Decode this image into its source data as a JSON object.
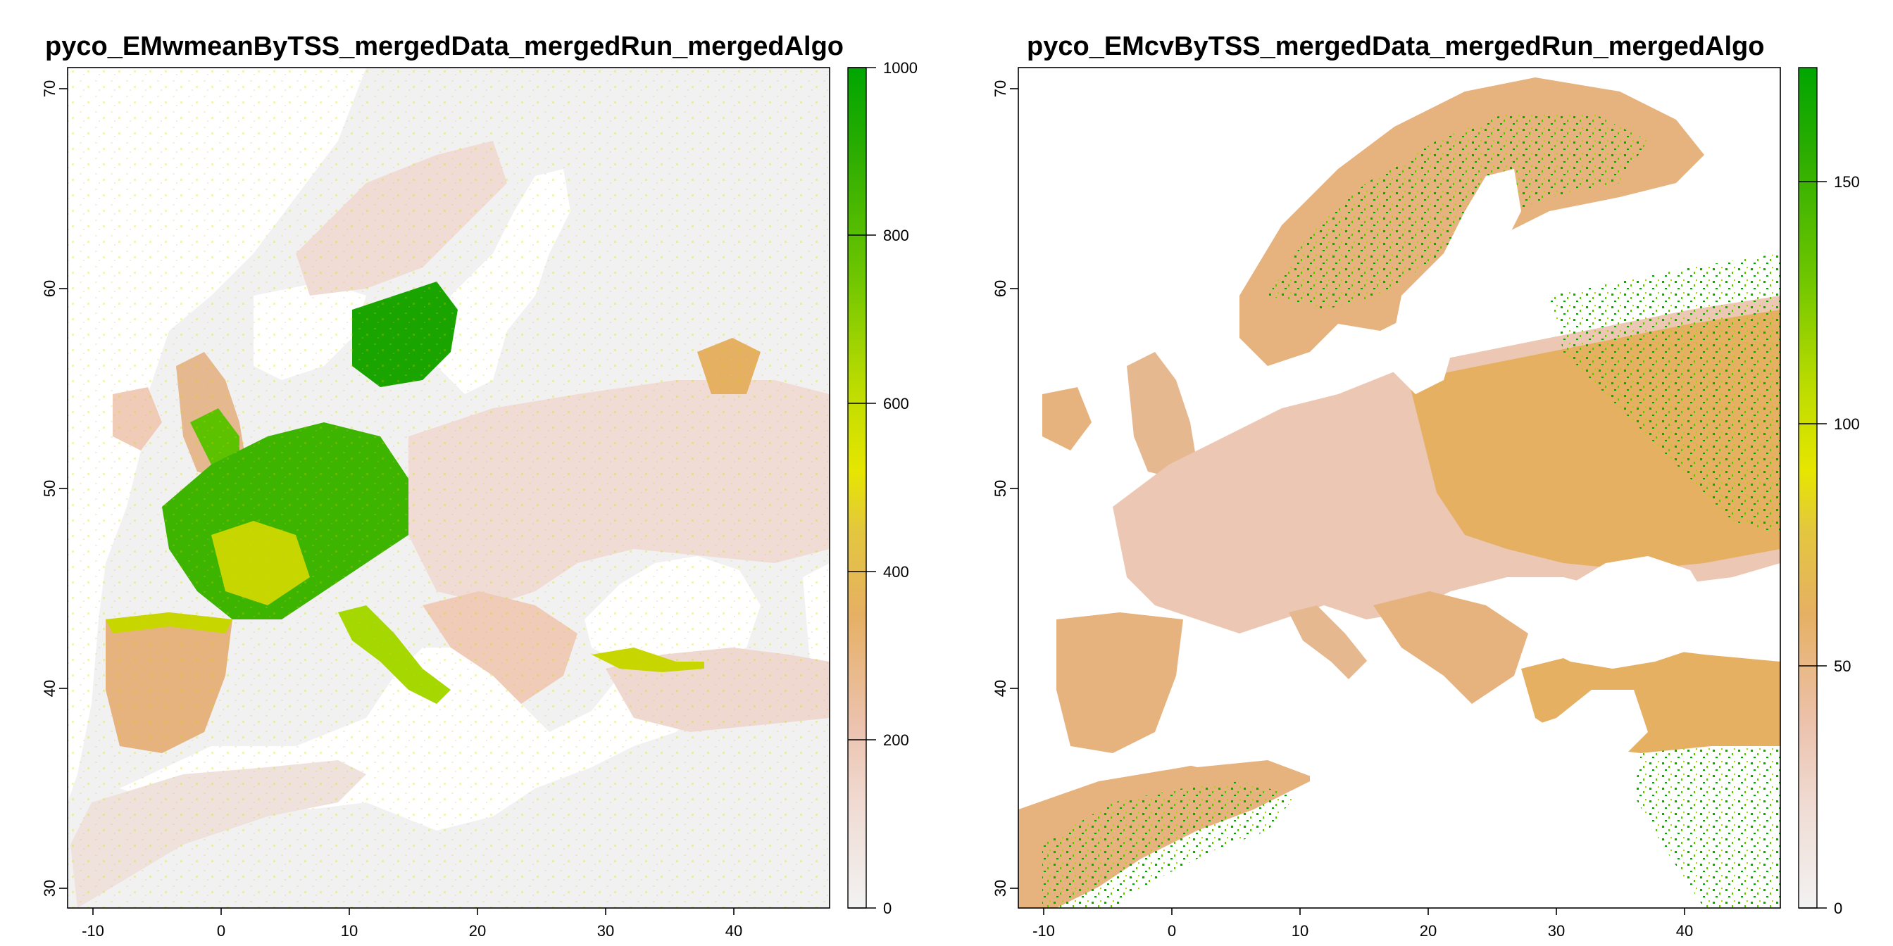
{
  "panels": [
    {
      "title": "pyco_EMwmeanByTSS_mergedData_mergedRun_mergedAlgo",
      "x_ticks": [
        "-10",
        "0",
        "10",
        "20",
        "30",
        "40"
      ],
      "y_ticks": [
        "30",
        "40",
        "50",
        "60",
        "70"
      ],
      "legend_ticks": [
        "0",
        "200",
        "400",
        "600",
        "800",
        "1000"
      ],
      "background_color": "#f0f0f0",
      "ramp": [
        "#f2f2f2",
        "#efcfc0",
        "#e8b27e",
        "#e3c73e",
        "#e6e600",
        "#a4d800",
        "#5cc200",
        "#1aa400",
        "#00a600"
      ]
    },
    {
      "title": "pyco_EMcvByTSS_mergedData_mergedRun_mergedAlgo",
      "x_ticks": [
        "-10",
        "0",
        "10",
        "20",
        "30",
        "40"
      ],
      "y_ticks": [
        "30",
        "40",
        "50",
        "60",
        "70"
      ],
      "legend_ticks": [
        "0",
        "50",
        "100",
        "150"
      ],
      "background_color": "#ffffff",
      "ramp": [
        "#f2f2f2",
        "#efcfc0",
        "#e8b27e",
        "#e3c73e",
        "#e6e600",
        "#a4d800",
        "#5cc200",
        "#1aa400",
        "#00a600"
      ]
    }
  ]
}
